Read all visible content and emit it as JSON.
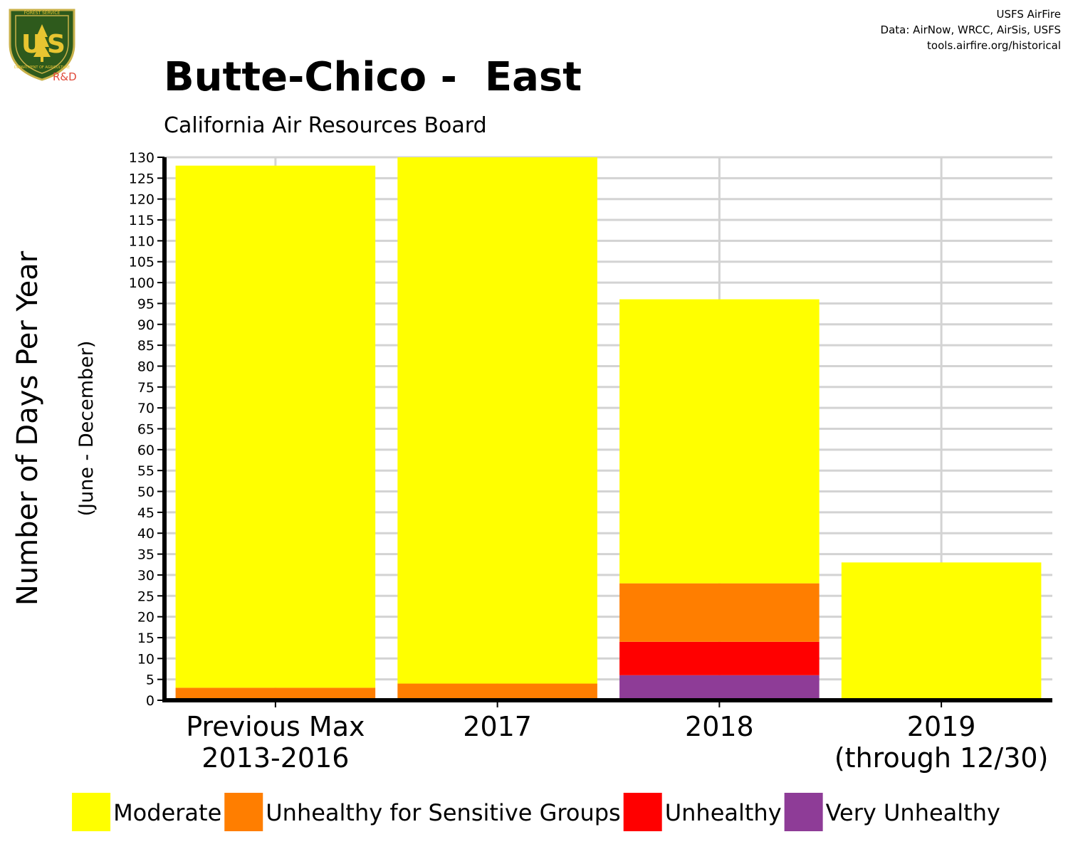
{
  "logo": {
    "top_text": "FOREST SERVICE",
    "letters": "US",
    "bottom_text": "DEPARTMENT OF AGRICULTURE",
    "rd": "R&D",
    "colors": {
      "shield": "#2e5a1c",
      "letters": "#e8c531",
      "rd": "#e04a3a"
    }
  },
  "credits": {
    "line1": "USFS AirFire",
    "line2": "Data: AirNow, WRCC, AirSis, USFS",
    "line3": "tools.airfire.org/historical"
  },
  "chart_data": {
    "type": "bar",
    "stacked": true,
    "title": "Butte-Chico -  East",
    "subtitle": "California Air Resources Board",
    "ylabel": "Number of Days Per Year",
    "ylabel_sub": "(June - December)",
    "xlabel": "",
    "ylim": [
      0,
      130
    ],
    "yticks": [
      0,
      5,
      10,
      15,
      20,
      25,
      30,
      35,
      40,
      45,
      50,
      55,
      60,
      65,
      70,
      75,
      80,
      85,
      90,
      95,
      100,
      105,
      110,
      115,
      120,
      125,
      130
    ],
    "grid": true,
    "legend_position": "bottom",
    "categories": [
      [
        "Previous Max",
        "2013-2016"
      ],
      [
        "2017"
      ],
      [
        "2018"
      ],
      [
        "2019",
        "(through 12/30)"
      ]
    ],
    "series": [
      {
        "name": "Very Unhealthy",
        "color": "#8e3c97",
        "values": [
          0,
          0,
          6,
          0
        ]
      },
      {
        "name": "Unhealthy",
        "color": "#ff0000",
        "values": [
          0,
          0,
          8,
          0
        ]
      },
      {
        "name": "Unhealthy for Sensitive Groups",
        "color": "#ff7e00",
        "values": [
          3,
          4,
          14,
          0
        ]
      },
      {
        "name": "Moderate",
        "color": "#ffff00",
        "values": [
          125,
          126,
          68,
          33
        ]
      }
    ],
    "legend_order": [
      "Moderate",
      "Unhealthy for Sensitive Groups",
      "Unhealthy",
      "Very Unhealthy"
    ]
  }
}
